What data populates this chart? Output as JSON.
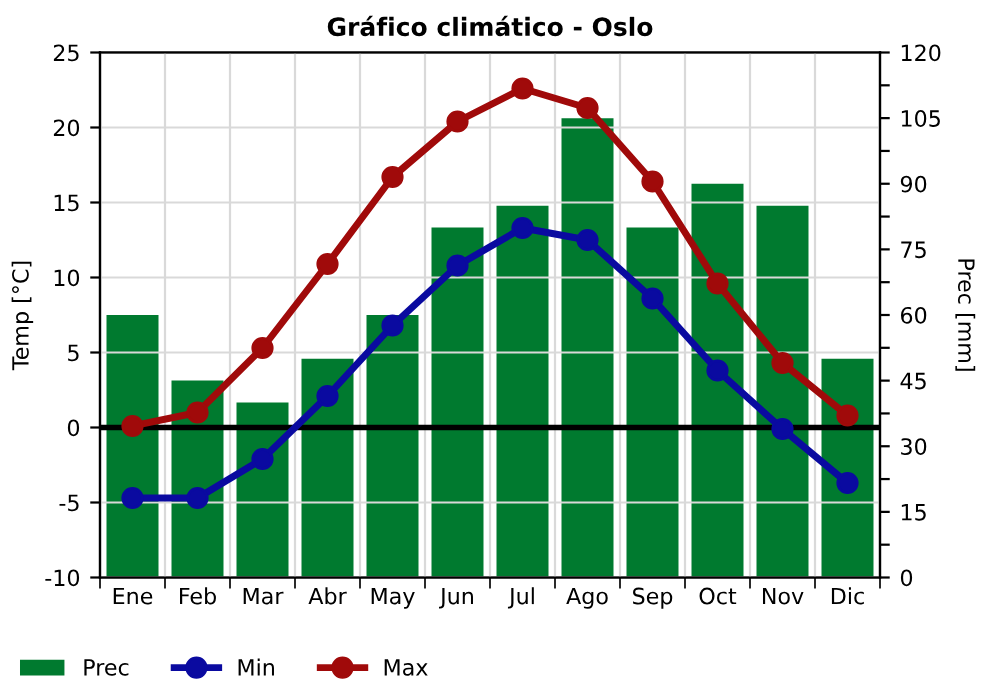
{
  "chart_data": {
    "type": "line",
    "title": "Gráfico climático - Oslo",
    "ylabel": "Temp [°C]",
    "y2label": "Prec [mm]",
    "categories": [
      "Ene",
      "Feb",
      "Mar",
      "Abr",
      "May",
      "Jun",
      "Jul",
      "Ago",
      "Sep",
      "Oct",
      "Nov",
      "Dic"
    ],
    "series": [
      {
        "name": "Prec",
        "type": "bar",
        "axis": "y2",
        "color": "#007a2f",
        "values": [
          60,
          45,
          40,
          50,
          60,
          80,
          85,
          105,
          80,
          90,
          85,
          50
        ]
      },
      {
        "name": "Min",
        "axis": "y",
        "color": "#0a0aa0",
        "values": [
          -4.7,
          -4.7,
          -2.1,
          2.1,
          6.8,
          10.8,
          13.3,
          12.5,
          8.6,
          3.8,
          -0.1,
          -3.7
        ]
      },
      {
        "name": "Max",
        "axis": "y",
        "color": "#a00a0a",
        "values": [
          0.1,
          1.0,
          5.3,
          10.9,
          16.7,
          20.4,
          22.6,
          21.3,
          16.4,
          9.6,
          4.3,
          0.8
        ]
      }
    ],
    "ylim": [
      -10,
      25
    ],
    "yticks": [
      -10,
      -5,
      0,
      5,
      10,
      15,
      20,
      25
    ],
    "y2lim": [
      0,
      120
    ],
    "y2ticks": [
      0,
      {
        "value": 7.5,
        "label": null
      },
      15,
      {
        "value": 22.5,
        "label": null
      },
      30,
      {
        "value": 37.5,
        "label": null
      },
      45,
      {
        "value": 52.5,
        "label": null
      },
      60,
      {
        "value": 67.5,
        "label": null
      },
      75,
      {
        "value": 82.5,
        "label": null
      },
      90,
      {
        "value": 97.5,
        "label": null
      },
      105,
      {
        "value": 112.5,
        "label": null
      },
      120
    ],
    "ref_lines": [
      {
        "axis": "y",
        "value": 0,
        "color": "#000000"
      }
    ],
    "marker": "circle",
    "line_style": "solid",
    "grid": true,
    "legend": "bottom"
  }
}
